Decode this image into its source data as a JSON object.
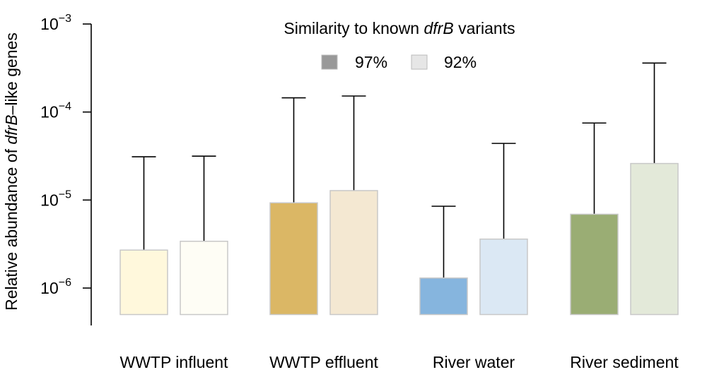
{
  "chart_data": {
    "type": "bar",
    "scale": "log10",
    "ylabel_parts": [
      "Relative abundance of ",
      "dfrB",
      "–like genes"
    ],
    "ylim": [
      5e-07,
      0.001
    ],
    "yticks": [
      {
        "value": 1e-06,
        "base": "10",
        "exp": "−6"
      },
      {
        "value": 1e-05,
        "base": "10",
        "exp": "−5"
      },
      {
        "value": 0.0001,
        "base": "10",
        "exp": "−4"
      },
      {
        "value": 0.001,
        "base": "10",
        "exp": "−3"
      }
    ],
    "legend": {
      "title_parts": [
        "Similarity to known ",
        "dfrB",
        " variants"
      ],
      "entries": [
        {
          "label": "97%",
          "color": "#999999"
        },
        {
          "label": "92%",
          "color": "#e6e6e6"
        }
      ],
      "placement": "top-center"
    },
    "categories": [
      "WWTP influent",
      "WWTP effluent",
      "River water",
      "River sediment"
    ],
    "series": [
      {
        "name": "97%",
        "values": [
          2.7e-06,
          9.3e-06,
          1.3e-06,
          6.9e-06
        ],
        "error_upper": [
          3.1e-05,
          0.000145,
          8.5e-06,
          7.5e-05
        ],
        "colors": [
          "#fff8dc",
          "#dbb765",
          "#86b5de",
          "#9aad74"
        ]
      },
      {
        "name": "92%",
        "values": [
          3.4e-06,
          1.28e-05,
          3.6e-06,
          2.6e-05
        ],
        "error_upper": [
          3.15e-05,
          0.000152,
          4.4e-05,
          0.00036
        ],
        "colors": [
          "#fefdf5",
          "#f4e8d2",
          "#dbe8f4",
          "#e3e9d9"
        ]
      }
    ]
  }
}
